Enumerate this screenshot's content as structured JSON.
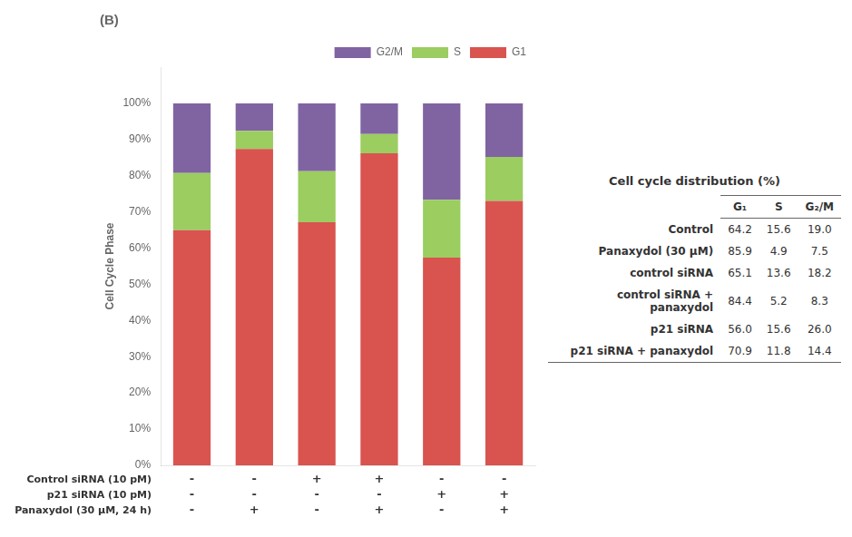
{
  "chart_data": {
    "type": "bar",
    "title": "(B)",
    "stacked": true,
    "categories": [
      null,
      null,
      null,
      null,
      null,
      null
    ],
    "series": [
      {
        "name": "G1",
        "color": "#d9534f",
        "values": [
          64.9797571,
          87.3855544,
          67.1826625,
          86.2104188,
          57.37704918,
          73.0175077
        ]
      },
      {
        "name": "S",
        "color": "#9bcd61",
        "values": [
          15.78947368,
          4.9847406,
          14.0350877,
          5.3115424,
          15.98360656,
          12.15242019
        ]
      },
      {
        "name": "G2/M",
        "color": "#8064a2",
        "values": [
          19.23076923,
          7.62970499,
          18.7822497,
          8.47803882,
          26.63934426,
          14.8300721
        ]
      }
    ],
    "y_label": "Cell Cycle Phase",
    "ylim": [
      0,
      110
    ],
    "yticks": [
      {
        "value": 0,
        "label": "0%"
      },
      {
        "value": 10,
        "label": "10%"
      },
      {
        "value": 20,
        "label": "20%"
      },
      {
        "value": 30,
        "label": "30%"
      },
      {
        "value": 40,
        "label": "40%"
      },
      {
        "value": 50,
        "label": "50%"
      },
      {
        "value": 60,
        "label": "60%"
      },
      {
        "value": 70,
        "label": "70%"
      },
      {
        "value": 80,
        "label": "80%"
      },
      {
        "value": 90,
        "label": "90%"
      },
      {
        "value": 100,
        "label": "100%"
      }
    ],
    "grid": false,
    "legend": "upper right",
    "tick_labels": "y",
    "sign_rows": [
      {
        "label": "Control siRNA (10 pM)",
        "signs": [
          "-",
          "-",
          "+",
          "+",
          "-",
          "-"
        ]
      },
      {
        "label": "p21 siRNA (10 pM)",
        "signs": [
          "-",
          "-",
          "-",
          "-",
          "+",
          "+"
        ]
      },
      {
        "label": "Panaxydol (30 μM, 24 h)",
        "signs": [
          "-",
          "+",
          "-",
          "+",
          "-",
          "+"
        ]
      }
    ],
    "table": {
      "title": "Cell cycle distribution (%)",
      "columns": [
        "G₁",
        "S",
        "G₂/M"
      ],
      "rows": [
        {
          "label": "Control",
          "values": [
            "64.2",
            "15.6",
            "19.0"
          ]
        },
        {
          "label": "Panaxydol (30 μM)",
          "values": [
            "85.9",
            "4.9",
            "7.5"
          ]
        },
        {
          "label": "control siRNA",
          "values": [
            "65.1",
            "13.6",
            "18.2"
          ]
        },
        {
          "label": "control siRNA + panaxydol",
          "values": [
            "84.4",
            "5.2",
            "8.3"
          ]
        },
        {
          "label": "p21 siRNA",
          "values": [
            "56.0",
            "15.6",
            "26.0"
          ]
        },
        {
          "label": "p21 siRNA + panaxydol",
          "values": [
            "70.9",
            "11.8",
            "14.4"
          ]
        }
      ]
    }
  }
}
